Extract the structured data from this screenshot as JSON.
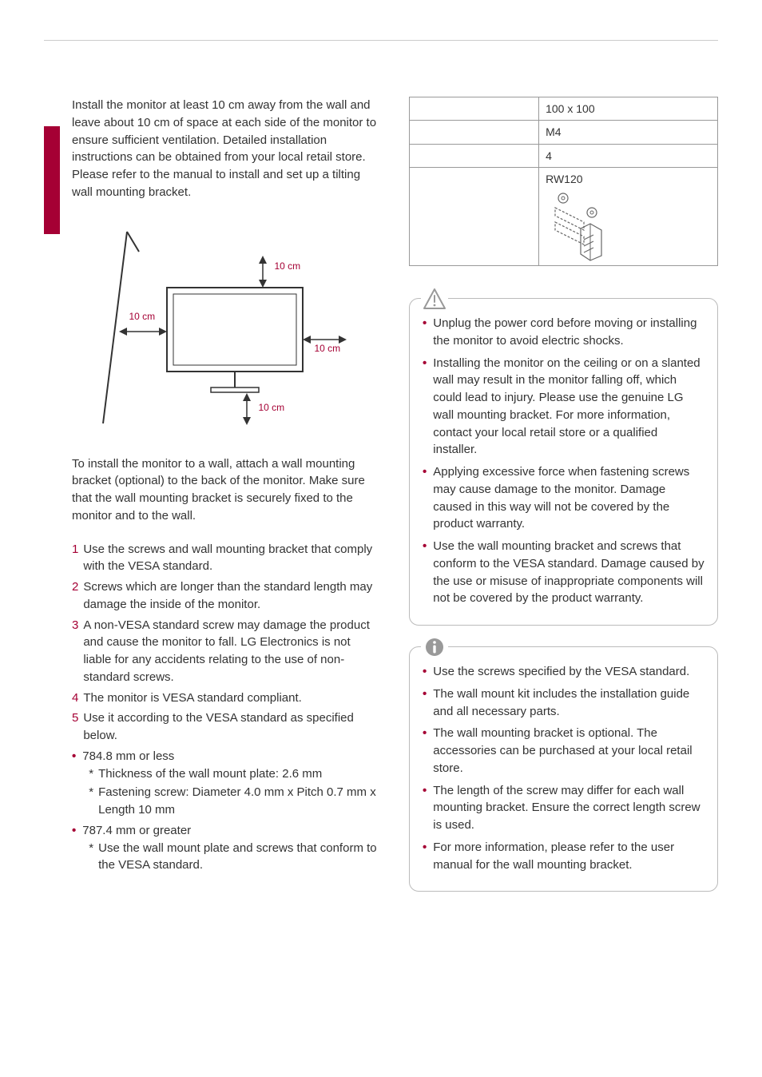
{
  "accent_color": "#a50034",
  "icon_gray": "#999999",
  "diagram": {
    "label": "10 cm",
    "labels": {
      "top": "10 cm",
      "left": "10 cm",
      "right": "10 cm",
      "bottom": "10 cm"
    }
  },
  "intro": "Install the monitor at least 10 cm away from the wall and leave about 10 cm of space at each side of the monitor to ensure sufficient ventilation. Detailed installation instructions can be obtained from your local retail store. Please refer to the manual to install and set up a tilting wall mounting bracket.",
  "subpara": "To install the monitor to a wall, attach a wall mounting bracket (optional) to the back of the monitor. Make sure that the wall mounting bracket is securely fixed to the monitor and to the wall.",
  "steps": [
    {
      "n": "1",
      "t": "Use the screws and wall mounting bracket that comply with the VESA standard."
    },
    {
      "n": "2",
      "t": "Screws which are longer than the standard length may damage the inside of the monitor."
    },
    {
      "n": "3",
      "t": "A non-VESA standard screw may damage the product and cause the monitor to fall. LG Electronics is not liable for any accidents relating to the use of non-standard screws."
    },
    {
      "n": "4",
      "t": "The monitor is VESA standard compliant."
    },
    {
      "n": "5",
      "t": "Use it according to the VESA standard as specified below."
    }
  ],
  "spec_groups": [
    {
      "header": "784.8 mm or less",
      "items": [
        "Thickness of the wall mount plate: 2.6 mm",
        "Fastening screw: Diameter 4.0 mm x Pitch 0.7 mm x Length 10 mm"
      ]
    },
    {
      "header": "787.4 mm or greater",
      "items": [
        "Use the wall mount plate and screws that conform to the VESA standard."
      ]
    }
  ],
  "spec_table": [
    {
      "k": "",
      "v": "100 x 100"
    },
    {
      "k": "",
      "v": "M4"
    },
    {
      "k": "",
      "v": "4"
    },
    {
      "k": "",
      "v": "RW120",
      "has_img": true
    }
  ],
  "caution_items": [
    "Unplug the power cord before moving or installing the monitor to avoid electric shocks.",
    "Installing the monitor on the ceiling or on a slanted wall may result in the monitor falling off, which could lead to injury. Please use the genuine LG wall mounting bracket. For more information, contact your local retail store or a qualified installer.",
    "Applying excessive force when fastening screws may cause damage to the monitor. Damage caused in this way will not be covered by the product warranty.",
    "Use the wall mounting bracket and screws that conform to the VESA standard. Damage caused by the use or misuse of inappropriate components will not be covered by the product warranty."
  ],
  "note_items": [
    "Use the screws specified by the VESA standard.",
    "The wall mount kit includes the installation guide and all necessary parts.",
    "The wall mounting bracket is optional. The accessories can be purchased at your local retail store.",
    "The length of the screw may differ for each wall mounting bracket. Ensure the correct length screw is used.",
    "For more information, please refer to the user manual for the wall mounting bracket."
  ]
}
